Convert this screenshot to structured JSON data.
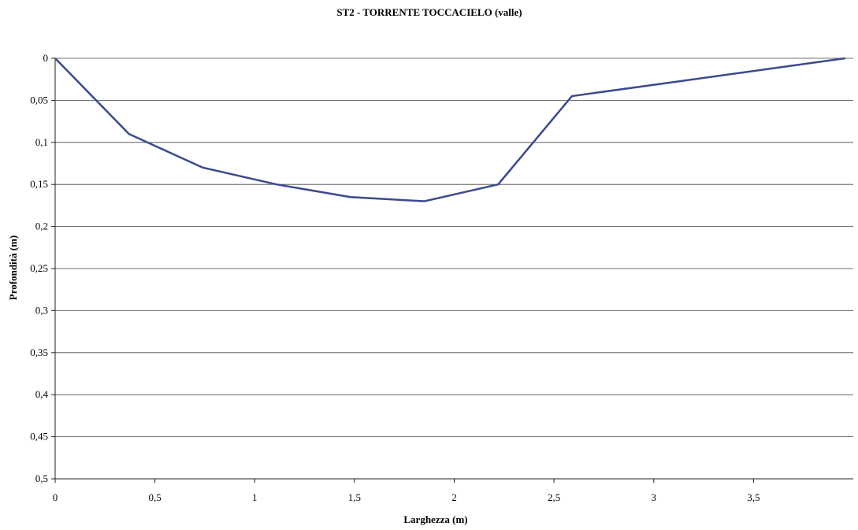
{
  "chart_data": {
    "type": "line",
    "title": "ST2 - TORRENTE TOCCACIELO (valle)",
    "xlabel": "Larghezza (m)",
    "ylabel": "Profondità (m)",
    "xlim": [
      0,
      4
    ],
    "ylim": [
      0,
      0.5
    ],
    "y_inverted": true,
    "grid": "horizontal",
    "x_ticks": [
      "0",
      "0,5",
      "1",
      "1,5",
      "2",
      "2,5",
      "3",
      "3,5"
    ],
    "y_ticks": [
      "0",
      "0,05",
      "0,1",
      "0,15",
      "0,2",
      "0,25",
      "0,3",
      "0,35",
      "0,4",
      "0,45",
      "0,5"
    ],
    "series": [
      {
        "color": "#3b4a8f",
        "x": [
          0,
          0.37,
          0.74,
          1.11,
          1.48,
          1.85,
          2.22,
          2.59,
          3.96
        ],
        "y": [
          0,
          0.09,
          0.13,
          0.15,
          0.165,
          0.17,
          0.15,
          0.045,
          0.0
        ]
      }
    ]
  }
}
